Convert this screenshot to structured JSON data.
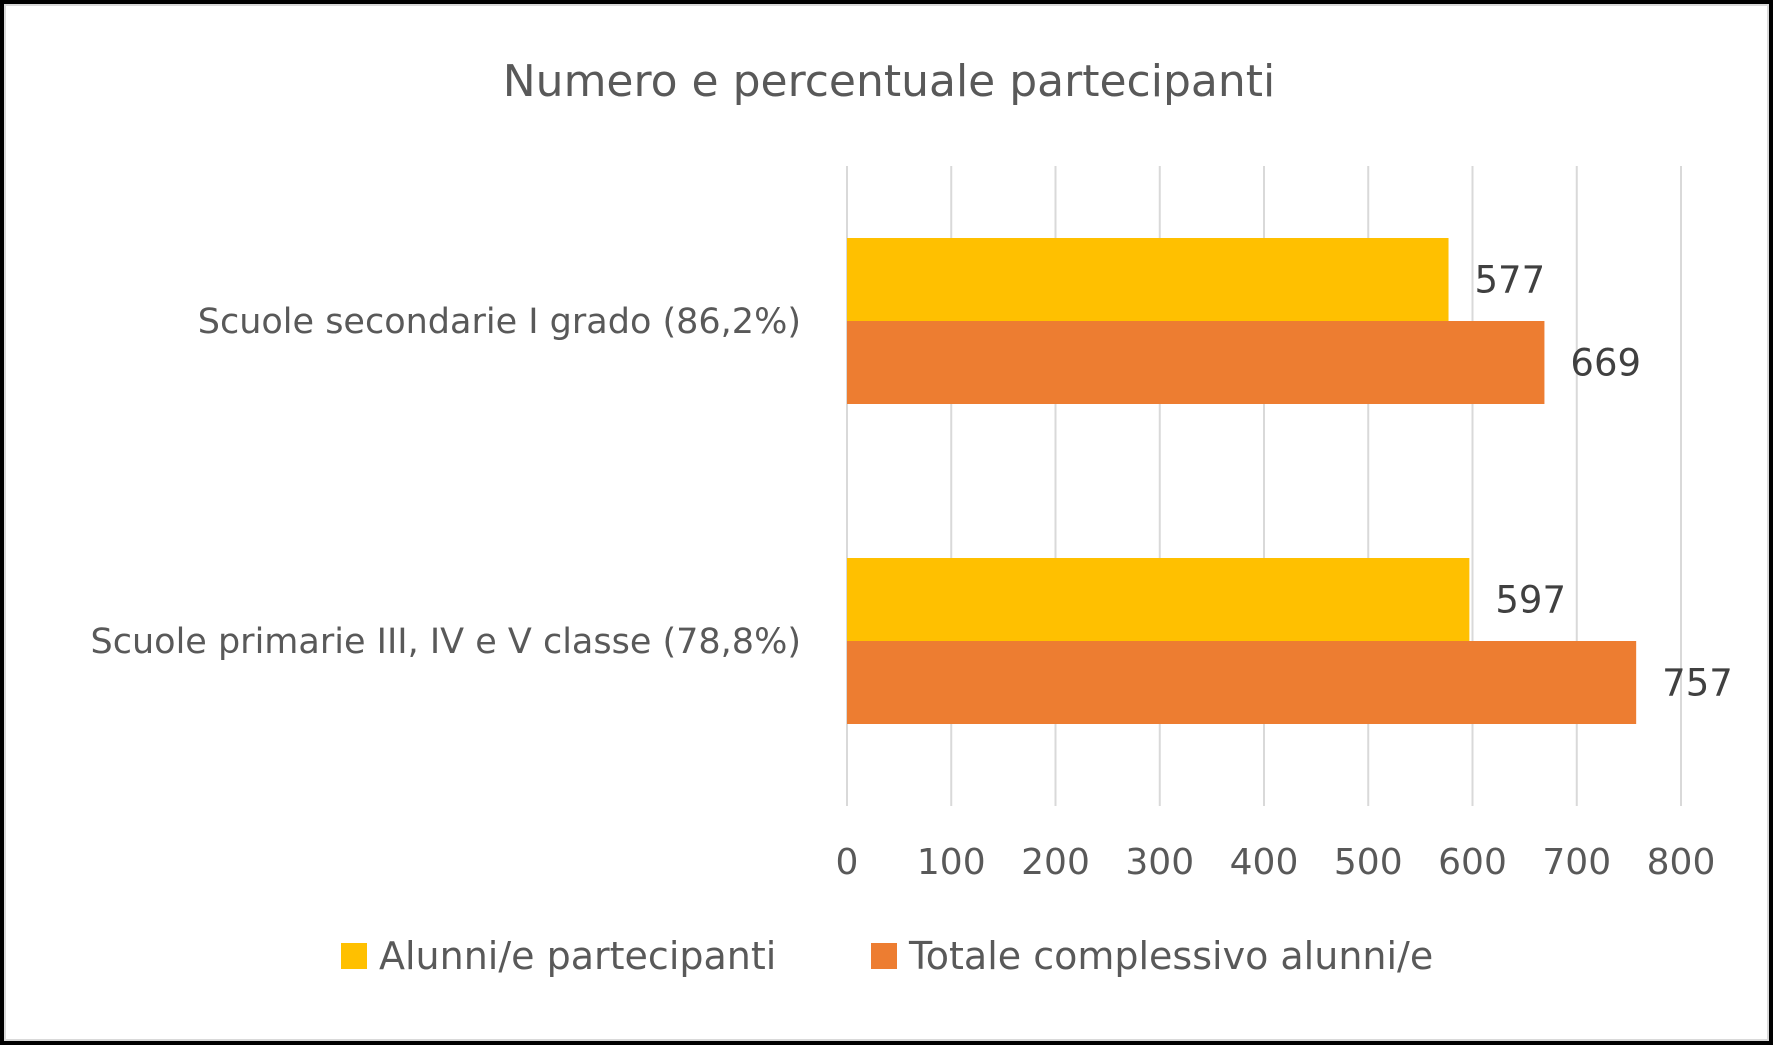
{
  "chart_data": {
    "type": "bar",
    "orientation": "horizontal",
    "title": "Numero e percentuale partecipanti",
    "categories": [
      "Scuole secondarie I grado (86,2%)",
      "Scuole primarie III, IV e V classe (78,8%)"
    ],
    "series": [
      {
        "name": "Alunni/e partecipanti",
        "values": [
          577,
          597
        ],
        "color": "#FFC000"
      },
      {
        "name": "Totale complessivo alunni/e",
        "values": [
          669,
          757
        ],
        "color": "#ED7D31"
      }
    ],
    "xlim": [
      0,
      800
    ],
    "xticks": [
      0,
      100,
      200,
      300,
      400,
      500,
      600,
      700,
      800
    ],
    "grid": true,
    "legend_position": "bottom",
    "data_labels": true
  }
}
